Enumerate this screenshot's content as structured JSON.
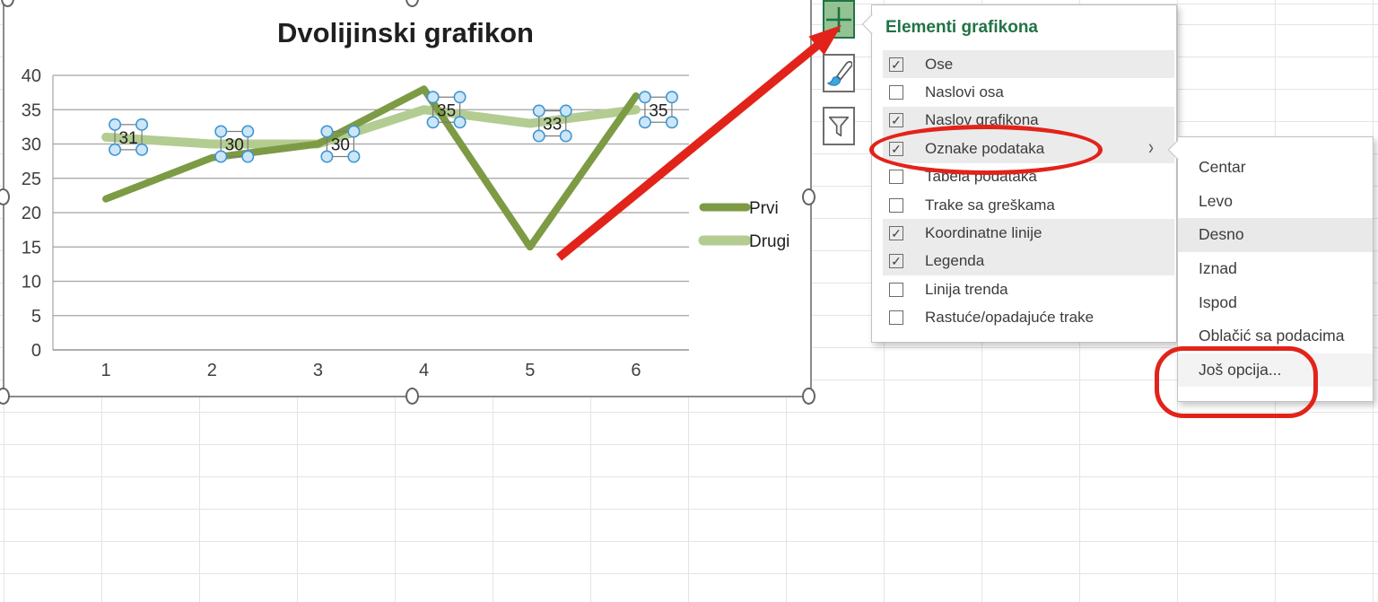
{
  "chart_data": {
    "type": "line",
    "title": "Dvolijinski grafikon",
    "categories": [
      "1",
      "2",
      "3",
      "4",
      "5",
      "6"
    ],
    "series": [
      {
        "name": "Prvi",
        "values": [
          22,
          28,
          30,
          38,
          15,
          37
        ],
        "color": "#7C9B44",
        "width": 8,
        "data_labels": false
      },
      {
        "name": "Drugi",
        "values": [
          31,
          30,
          30,
          35,
          33,
          35
        ],
        "color": "#B3CC92",
        "width": 10,
        "data_labels": true,
        "labels_position": "right"
      }
    ],
    "ylim": [
      0,
      40
    ],
    "ytick_step": 5,
    "grid": true,
    "legend_position": "right",
    "xlabel": "",
    "ylabel": ""
  },
  "chart_tools": {
    "buttons": [
      {
        "name": "chart-elements-button",
        "icon": "plus-icon",
        "selected": true
      },
      {
        "name": "chart-styles-button",
        "icon": "brush-icon",
        "selected": false
      },
      {
        "name": "chart-filters-button",
        "icon": "funnel-icon",
        "selected": false
      }
    ]
  },
  "elements_menu": {
    "title": "Elementi grafikona",
    "items": [
      {
        "label": "Ose",
        "checked": true
      },
      {
        "label": "Naslovi osa",
        "checked": false
      },
      {
        "label": "Naslov grafikona",
        "checked": true
      },
      {
        "label": "Oznake podataka",
        "checked": true,
        "has_submenu": true,
        "annotated": true
      },
      {
        "label": "Tabela podataka",
        "checked": false
      },
      {
        "label": "Trake sa greškama",
        "checked": false
      },
      {
        "label": "Koordinatne linije",
        "checked": true
      },
      {
        "label": "Legenda",
        "checked": true
      },
      {
        "label": "Linija trenda",
        "checked": false
      },
      {
        "label": "Rastuće/opadajuće trake",
        "checked": false
      }
    ]
  },
  "submenu": {
    "items": [
      {
        "label": "Centar"
      },
      {
        "label": "Levo"
      },
      {
        "label": "Desno",
        "highlighted": true
      },
      {
        "label": "Iznad"
      },
      {
        "label": "Ispod"
      },
      {
        "label": "Oblačić sa podacima"
      },
      {
        "label": "Još opcija...",
        "subtle": true,
        "annotated": true
      }
    ]
  },
  "icons": {
    "check": "✓",
    "chevron": "›"
  },
  "colors": {
    "excel_green": "#217346",
    "plus_button_fill": "#93C393",
    "annotation_red": "#E2231A",
    "series_prvi": "#7C9B44",
    "series_drugi": "#B3CC92",
    "menu_highlight": "#EBEBEB",
    "label_handle_fill": "#CDE6F7",
    "label_handle_stroke": "#3E96D2"
  }
}
